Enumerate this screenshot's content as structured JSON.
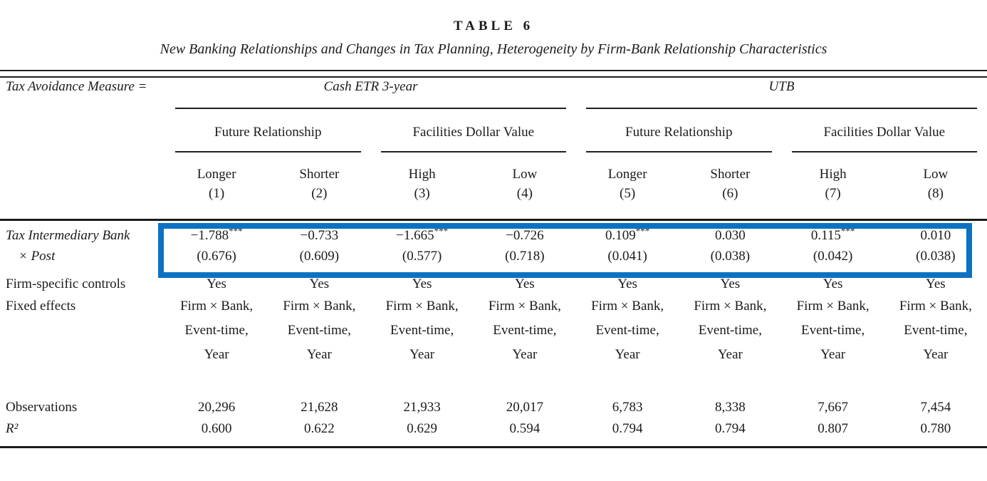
{
  "title": "TABLE 6",
  "subtitle": "New Banking Relationships and Changes in Tax Planning, Heterogeneity by Firm-Bank Relationship Characteristics",
  "colors": {
    "highlight": "#0b72c1",
    "rule": "#1a1a1a"
  },
  "header": {
    "measure_label": "Tax Avoidance Measure =",
    "groups": [
      {
        "label": "Cash ETR 3-year",
        "subgroups": [
          {
            "label": "Future Relationship",
            "cols": [
              {
                "name": "Longer",
                "num": "(1)"
              },
              {
                "name": "Shorter",
                "num": "(2)"
              }
            ]
          },
          {
            "label": "Facilities Dollar Value",
            "cols": [
              {
                "name": "High",
                "num": "(3)"
              },
              {
                "name": "Low",
                "num": "(4)"
              }
            ]
          }
        ]
      },
      {
        "label": "UTB",
        "subgroups": [
          {
            "label": "Future Relationship",
            "cols": [
              {
                "name": "Longer",
                "num": "(5)"
              },
              {
                "name": "Shorter",
                "num": "(6)"
              }
            ]
          },
          {
            "label": "Facilities Dollar Value",
            "cols": [
              {
                "name": "High",
                "num": "(7)"
              },
              {
                "name": "Low",
                "num": "(8)"
              }
            ]
          }
        ]
      }
    ]
  },
  "rows": {
    "coefficient": {
      "label_line1": "Tax Intermediary Bank",
      "label_line2": "× Post",
      "values": [
        "−1.788",
        "−0.733",
        "−1.665",
        "−0.726",
        "0.109",
        "0.030",
        "0.115",
        "0.010"
      ],
      "stars": [
        "***",
        "",
        "***",
        "",
        "***",
        "",
        "***",
        ""
      ],
      "se": [
        "(0.676)",
        "(0.609)",
        "(0.577)",
        "(0.718)",
        "(0.041)",
        "(0.038)",
        "(0.042)",
        "(0.038)"
      ]
    },
    "controls": {
      "label": "Firm-specific controls",
      "values": [
        "Yes",
        "Yes",
        "Yes",
        "Yes",
        "Yes",
        "Yes",
        "Yes",
        "Yes"
      ]
    },
    "fixed_effects": {
      "label": "Fixed effects",
      "lines": [
        "Firm × Bank,",
        "Event-time,",
        "Year"
      ]
    },
    "observations": {
      "label": "Observations",
      "values": [
        "20,296",
        "21,628",
        "21,933",
        "20,017",
        "6,783",
        "8,338",
        "7,667",
        "7,454"
      ]
    },
    "r_squared": {
      "label": "R²",
      "values": [
        "0.600",
        "0.622",
        "0.629",
        "0.594",
        "0.794",
        "0.794",
        "0.807",
        "0.780"
      ]
    }
  }
}
